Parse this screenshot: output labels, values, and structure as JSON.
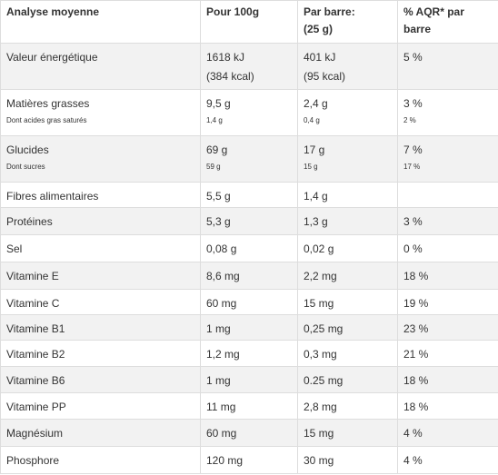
{
  "table": {
    "header": [
      [
        "Analyse moyenne"
      ],
      [
        "Pour 100g"
      ],
      [
        "Par barre:",
        "(25 g)"
      ],
      [
        "% AQR* par",
        "barre"
      ]
    ],
    "rows": [
      {
        "cells": [
          [
            "Valeur énergétique"
          ],
          [
            "1618 kJ",
            "(384 kcal)"
          ],
          [
            "401 kJ",
            "(95 kcal)"
          ],
          [
            "5 %"
          ]
        ]
      },
      {
        "cells": [
          [
            "Matières grasses"
          ],
          [
            "9,5 g"
          ],
          [
            "2,4 g"
          ],
          [
            "3 %"
          ]
        ],
        "sub": [
          "Dont acides gras saturés",
          "1,4 g",
          "0,4 g",
          "2 %"
        ]
      },
      {
        "cells": [
          [
            "Glucides"
          ],
          [
            "69 g"
          ],
          [
            "17 g"
          ],
          [
            "7 %"
          ]
        ],
        "sub": [
          "Dont sucres",
          "59 g",
          "15 g",
          "17 %"
        ]
      },
      {
        "cells": [
          [
            "Fibres alimentaires"
          ],
          [
            "5,5 g"
          ],
          [
            "1,4 g"
          ],
          []
        ]
      },
      {
        "cells": [
          [
            "Protéines"
          ],
          [
            "5,3 g"
          ],
          [
            "1,3 g"
          ],
          [
            "3 %"
          ]
        ]
      },
      {
        "cells": [
          [
            "Sel"
          ],
          [
            "0,08 g"
          ],
          [
            "0,02 g"
          ],
          [
            "0 %"
          ]
        ]
      },
      {
        "cells": [
          [
            "Vitamine E"
          ],
          [
            "8,6 mg"
          ],
          [
            "2,2 mg"
          ],
          [
            "18 %"
          ]
        ]
      },
      {
        "cells": [
          [
            "Vitamine C"
          ],
          [
            "60 mg"
          ],
          [
            "15 mg"
          ],
          [
            "19 %"
          ]
        ]
      },
      {
        "cells": [
          [
            "Vitamine B1"
          ],
          [
            "1 mg"
          ],
          [
            "0,25 mg"
          ],
          [
            "23 %"
          ]
        ]
      },
      {
        "cells": [
          [
            "Vitamine B2"
          ],
          [
            "1,2 mg"
          ],
          [
            "0,3 mg"
          ],
          [
            "21 %"
          ]
        ]
      },
      {
        "cells": [
          [
            "Vitamine B6"
          ],
          [
            "1 mg"
          ],
          [
            "0.25 mg"
          ],
          [
            "18 %"
          ]
        ]
      },
      {
        "cells": [
          [
            "Vitamine PP"
          ],
          [
            "11 mg"
          ],
          [
            "2,8 mg"
          ],
          [
            "18 %"
          ]
        ]
      },
      {
        "cells": [
          [
            "Magnésium"
          ],
          [
            "60 mg"
          ],
          [
            "15 mg"
          ],
          [
            "4 %"
          ]
        ]
      },
      {
        "cells": [
          [
            "Phosphore"
          ],
          [
            "120 mg"
          ],
          [
            "30 mg"
          ],
          [
            "4 %"
          ]
        ]
      }
    ]
  }
}
